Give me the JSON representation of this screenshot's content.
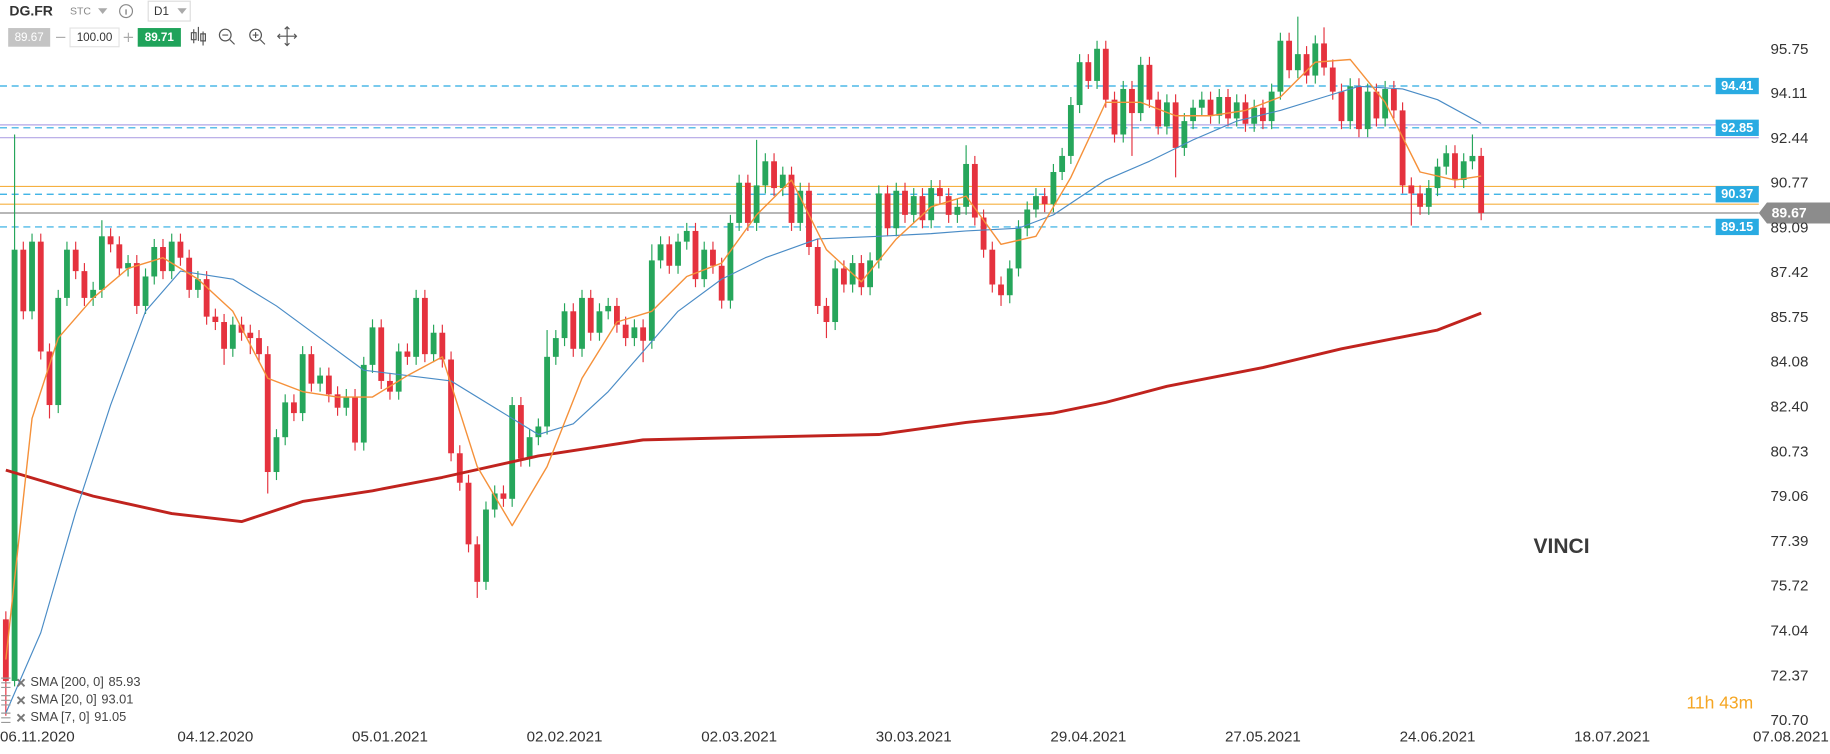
{
  "header": {
    "symbol": "DG.FR",
    "market": "STC",
    "timeframe": "D1",
    "bid": "89.67",
    "volume": "100.00",
    "ask": "89.71"
  },
  "annotation": "VINCI",
  "countdown": "11h 43m",
  "chart_data": {
    "type": "candlestick",
    "xlim": [
      -0.67,
      208.96
    ],
    "ylim": [
      70.52,
      97.62
    ],
    "xticks": [
      {
        "value": 4,
        "label": "06.11.2020"
      },
      {
        "value": 24,
        "label": "04.12.2020"
      },
      {
        "value": 44,
        "label": "05.01.2021"
      },
      {
        "value": 64,
        "label": "02.02.2021"
      },
      {
        "value": 84,
        "label": "02.03.2021"
      },
      {
        "value": 104,
        "label": "30.03.2021"
      },
      {
        "value": 124,
        "label": "29.04.2021"
      },
      {
        "value": 144,
        "label": "27.05.2021"
      },
      {
        "value": 164,
        "label": "24.06.2021"
      },
      {
        "value": 184,
        "label": "18.07.2021"
      },
      {
        "value": 204,
        "label": "07.08.2021"
      }
    ],
    "yticks": [
      95.75,
      94.11,
      92.44,
      90.77,
      89.09,
      87.42,
      85.75,
      84.08,
      {
        "value": 82.4,
        "label": "82.40"
      },
      80.73,
      79.06,
      77.39,
      75.72,
      74.04,
      72.37,
      {
        "value": 70.7,
        "label": "70.70"
      }
    ],
    "grid": false,
    "colors": {
      "up": "#26a65b",
      "down": "#e5323e"
    },
    "x": [
      0,
      1,
      2,
      3,
      4,
      5,
      6,
      7,
      8,
      9,
      10,
      11,
      12,
      13,
      14,
      15,
      16,
      17,
      18,
      19,
      20,
      21,
      22,
      23,
      24,
      25,
      26,
      27,
      28,
      29,
      30,
      31,
      32,
      33,
      34,
      35,
      36,
      37,
      38,
      39,
      40,
      41,
      42,
      43,
      44,
      45,
      46,
      47,
      48,
      49,
      50,
      51,
      52,
      53,
      54,
      55,
      56,
      57,
      58,
      59,
      60,
      61,
      62,
      63,
      64,
      65,
      66,
      67,
      68,
      69,
      70,
      71,
      72,
      73,
      74,
      75,
      76,
      77,
      78,
      79,
      80,
      81,
      82,
      83,
      84,
      85,
      86,
      87,
      88,
      89,
      90,
      91,
      92,
      93,
      94,
      95,
      96,
      97,
      98,
      99,
      100,
      101,
      102,
      103,
      104,
      105,
      106,
      107,
      108,
      109,
      110,
      111,
      112,
      113,
      114,
      115,
      116,
      117,
      118,
      119,
      120,
      121,
      122,
      123,
      124,
      125,
      126,
      127,
      128,
      129,
      130,
      131,
      132,
      133,
      134,
      135,
      136,
      137,
      138,
      139,
      140,
      141,
      142,
      143,
      144,
      145,
      146,
      147,
      148,
      149,
      150,
      151,
      152,
      153,
      154,
      155,
      156,
      157,
      158,
      159,
      160,
      161,
      162,
      163,
      164,
      165,
      166,
      167,
      168,
      169
    ],
    "open": [
      74.5,
      72.2,
      88.3,
      86.0,
      88.6,
      84.5,
      82.5,
      86.5,
      88.3,
      87.5,
      86.5,
      86.8,
      88.8,
      88.5,
      87.6,
      87.8,
      86.2,
      87.3,
      88.4,
      87.5,
      88.6,
      88.0,
      86.8,
      87.2,
      85.8,
      85.6,
      84.6,
      85.5,
      85.2,
      85.0,
      84.4,
      80.0,
      81.3,
      82.6,
      82.2,
      84.4,
      83.3,
      83.6,
      82.9,
      82.4,
      82.8,
      81.1,
      84.0,
      85.4,
      83.4,
      83.0,
      84.5,
      84.3,
      86.5,
      84.4,
      85.2,
      84.2,
      80.7,
      79.6,
      77.3,
      75.9,
      78.6,
      79.2,
      79.0,
      82.5,
      80.5,
      81.3,
      81.7,
      84.3,
      85.0,
      86.0,
      84.6,
      86.5,
      85.2,
      86.0,
      86.2,
      85.5,
      85.0,
      85.4,
      84.9,
      87.9,
      88.5,
      87.7,
      88.6,
      89.0,
      87.2,
      88.3,
      87.7,
      86.4,
      89.3,
      90.8,
      89.3,
      90.7,
      91.6,
      90.6,
      91.1,
      89.3,
      90.5,
      88.4,
      86.2,
      85.6,
      87.6,
      87.0,
      87.8,
      86.9,
      87.9,
      90.4,
      89.1,
      90.5,
      89.6,
      90.3,
      89.4,
      90.6,
      90.3,
      89.6,
      89.9,
      91.5,
      89.5,
      88.3,
      87.0,
      86.6,
      87.6,
      89.1,
      89.8,
      90.3,
      90.0,
      91.2,
      91.8,
      93.7,
      95.3,
      94.6,
      95.8,
      93.9,
      92.6,
      94.3,
      93.4,
      95.2,
      93.9,
      92.9,
      93.8,
      92.1,
      93.1,
      93.6,
      93.9,
      93.3,
      94.0,
      93.2,
      93.8,
      93.0,
      93.6,
      93.1,
      94.2,
      96.1,
      95.0,
      95.6,
      94.8,
      96.0,
      95.1,
      94.2,
      93.1,
      94.4,
      92.8,
      94.2,
      93.2,
      94.3,
      93.5,
      90.7,
      90.4,
      89.9,
      90.6,
      91.4,
      91.9,
      90.9,
      91.6,
      91.8
    ],
    "high": [
      74.8,
      92.6,
      88.6,
      88.9,
      88.9,
      84.8,
      86.8,
      88.6,
      88.6,
      87.8,
      87.1,
      89.4,
      89.1,
      88.8,
      88.1,
      88.1,
      87.6,
      88.7,
      88.7,
      88.9,
      88.9,
      88.3,
      87.5,
      87.5,
      86.1,
      85.9,
      85.8,
      85.8,
      85.5,
      85.3,
      84.7,
      81.6,
      82.9,
      82.9,
      84.7,
      84.7,
      83.9,
      83.9,
      83.2,
      83.1,
      83.1,
      84.3,
      85.7,
      85.7,
      83.7,
      84.8,
      84.8,
      86.8,
      86.8,
      85.5,
      85.5,
      84.5,
      81.0,
      79.9,
      77.6,
      78.9,
      79.5,
      79.5,
      82.8,
      82.8,
      81.6,
      82.0,
      85.3,
      85.3,
      86.3,
      86.3,
      86.8,
      86.8,
      86.3,
      86.5,
      86.5,
      85.8,
      85.7,
      85.7,
      88.5,
      88.8,
      88.8,
      88.9,
      89.3,
      89.3,
      88.6,
      88.6,
      88.0,
      89.6,
      91.1,
      91.1,
      92.4,
      91.9,
      91.9,
      91.4,
      91.4,
      90.8,
      90.8,
      88.7,
      86.5,
      87.9,
      87.9,
      88.1,
      88.1,
      88.2,
      90.7,
      90.7,
      90.8,
      90.8,
      90.6,
      90.6,
      90.9,
      90.9,
      90.6,
      90.2,
      92.2,
      91.8,
      89.8,
      88.6,
      87.3,
      87.9,
      89.4,
      90.1,
      90.6,
      90.6,
      91.5,
      92.1,
      94.0,
      95.6,
      95.6,
      96.1,
      96.1,
      94.2,
      94.6,
      94.6,
      95.5,
      95.5,
      94.2,
      94.1,
      94.1,
      93.4,
      93.9,
      94.2,
      94.2,
      94.3,
      94.3,
      94.1,
      94.1,
      93.9,
      93.9,
      94.5,
      96.4,
      96.4,
      97.0,
      95.9,
      96.3,
      96.6,
      95.4,
      94.5,
      94.7,
      94.7,
      94.5,
      94.5,
      94.6,
      94.6,
      93.8,
      91.0,
      90.7,
      90.9,
      91.7,
      92.2,
      92.2,
      91.9,
      92.6,
      92.1
    ],
    "low": [
      70.9,
      72.0,
      85.7,
      85.7,
      84.2,
      82.0,
      82.2,
      86.2,
      87.2,
      86.2,
      86.2,
      86.5,
      88.2,
      87.3,
      87.3,
      85.9,
      85.9,
      87.0,
      87.2,
      87.2,
      87.7,
      86.5,
      86.5,
      85.5,
      85.3,
      84.0,
      84.3,
      84.9,
      84.4,
      84.1,
      79.2,
      79.7,
      81.0,
      81.9,
      81.9,
      83.0,
      83.0,
      82.6,
      82.1,
      82.1,
      80.8,
      80.8,
      83.7,
      83.1,
      82.7,
      82.7,
      84.0,
      84.0,
      84.1,
      84.1,
      83.9,
      80.4,
      79.3,
      77.0,
      75.3,
      75.6,
      78.3,
      78.7,
      78.7,
      80.2,
      80.2,
      81.0,
      81.4,
      84.0,
      84.7,
      84.3,
      84.3,
      84.9,
      84.9,
      85.7,
      85.2,
      84.7,
      84.7,
      84.1,
      84.6,
      87.6,
      87.4,
      87.4,
      88.3,
      86.9,
      86.9,
      87.4,
      86.1,
      86.1,
      89.0,
      89.0,
      89.0,
      90.4,
      90.3,
      90.3,
      89.0,
      89.0,
      88.1,
      85.9,
      85.0,
      85.3,
      86.7,
      86.7,
      86.6,
      86.6,
      87.6,
      88.8,
      88.8,
      89.3,
      89.3,
      89.1,
      89.1,
      90.0,
      89.3,
      89.3,
      89.6,
      89.2,
      88.0,
      86.7,
      86.2,
      86.3,
      87.3,
      88.8,
      89.5,
      89.7,
      89.7,
      90.9,
      91.5,
      93.4,
      94.3,
      94.3,
      93.6,
      92.3,
      92.3,
      91.8,
      93.1,
      93.6,
      92.6,
      92.6,
      91.0,
      91.8,
      92.8,
      93.3,
      93.0,
      93.0,
      92.9,
      92.9,
      92.7,
      92.7,
      92.8,
      92.8,
      93.9,
      94.7,
      94.7,
      94.5,
      94.5,
      94.8,
      93.9,
      92.8,
      92.8,
      92.5,
      92.5,
      92.9,
      92.9,
      93.2,
      90.4,
      89.2,
      89.6,
      89.6,
      90.3,
      91.1,
      90.6,
      90.6,
      91.3,
      89.4
    ],
    "close": [
      72.2,
      88.3,
      86.0,
      88.6,
      84.5,
      82.5,
      86.5,
      88.3,
      87.5,
      86.5,
      86.8,
      88.8,
      88.5,
      87.6,
      87.8,
      86.2,
      87.3,
      88.4,
      87.5,
      88.6,
      88.0,
      86.8,
      87.2,
      85.8,
      85.6,
      84.6,
      85.5,
      85.2,
      85.0,
      84.4,
      80.0,
      81.3,
      82.6,
      82.2,
      84.4,
      83.3,
      83.6,
      82.9,
      82.4,
      82.8,
      81.1,
      84.0,
      85.4,
      83.4,
      83.0,
      84.5,
      84.3,
      86.5,
      84.4,
      85.2,
      84.2,
      80.7,
      79.6,
      77.3,
      75.9,
      78.6,
      79.2,
      79.0,
      82.5,
      80.5,
      81.3,
      81.7,
      84.3,
      85.0,
      86.0,
      84.6,
      86.5,
      85.2,
      86.0,
      86.2,
      85.5,
      85.0,
      85.4,
      84.9,
      87.9,
      88.5,
      87.7,
      88.6,
      89.0,
      87.2,
      88.3,
      87.7,
      86.4,
      89.3,
      90.8,
      89.3,
      90.7,
      91.6,
      90.6,
      91.1,
      89.3,
      90.5,
      88.4,
      86.2,
      85.6,
      87.6,
      87.0,
      87.8,
      86.9,
      87.9,
      90.4,
      89.1,
      90.5,
      89.6,
      90.3,
      89.4,
      90.6,
      90.3,
      89.6,
      89.9,
      91.5,
      89.5,
      88.3,
      87.0,
      86.6,
      87.6,
      89.1,
      89.8,
      90.3,
      90.0,
      91.2,
      91.8,
      93.7,
      95.3,
      94.6,
      95.8,
      93.9,
      92.6,
      94.3,
      93.4,
      95.2,
      93.9,
      92.9,
      93.8,
      92.1,
      93.1,
      93.6,
      93.9,
      93.3,
      94.0,
      93.2,
      93.8,
      93.0,
      93.6,
      93.1,
      94.2,
      96.1,
      95.0,
      95.6,
      94.8,
      96.0,
      95.1,
      94.2,
      93.1,
      94.4,
      92.8,
      94.2,
      93.2,
      94.3,
      93.5,
      90.7,
      90.4,
      89.9,
      90.6,
      91.4,
      91.9,
      90.9,
      91.6,
      91.8,
      89.67
    ],
    "series": [
      {
        "name": "SMA [200, 0]",
        "color": "#c0231e",
        "width": 2.5,
        "x": [
          0,
          10,
          19,
          27,
          34,
          42,
          50,
          61,
          73,
          86,
          100,
          110,
          120,
          126,
          133,
          144,
          153,
          164,
          169
        ],
        "values": [
          80.07,
          79.1,
          78.45,
          78.15,
          78.9,
          79.3,
          79.8,
          80.6,
          81.2,
          81.3,
          81.4,
          81.85,
          82.2,
          82.6,
          83.2,
          83.9,
          84.6,
          85.3,
          85.93
        ]
      },
      {
        "name": "SMA [20, 0]",
        "color": "#4a8cc6",
        "width": 1,
        "x": [
          0,
          4,
          8,
          12,
          16,
          20,
          26,
          31,
          36,
          41,
          46,
          51,
          56,
          61,
          65,
          69,
          73,
          77,
          82,
          87,
          93,
          100,
          106,
          110,
          116,
          120,
          126,
          131,
          136,
          141,
          146,
          151,
          155,
          160,
          164,
          169
        ],
        "values": [
          71.0,
          74.0,
          78.5,
          82.5,
          86.0,
          87.5,
          87.2,
          86.2,
          85.0,
          83.8,
          83.6,
          83.4,
          82.4,
          81.4,
          81.8,
          83.0,
          84.5,
          86.0,
          87.2,
          88.0,
          88.7,
          88.8,
          88.9,
          89.0,
          89.1,
          89.6,
          90.9,
          91.6,
          92.4,
          93.1,
          93.5,
          94.0,
          94.4,
          94.3,
          93.9,
          93.01
        ]
      },
      {
        "name": "SMA [7, 0]",
        "color": "#f5913a",
        "width": 1.2,
        "x": [
          0,
          3,
          6,
          10,
          14,
          18,
          22,
          26,
          30,
          34,
          38,
          42,
          46,
          50,
          54,
          58,
          62,
          66,
          70,
          74,
          78,
          82,
          86,
          90,
          94,
          98,
          102,
          106,
          110,
          114,
          118,
          122,
          126,
          130,
          134,
          138,
          142,
          146,
          150,
          154,
          158,
          162,
          166,
          169
        ],
        "values": [
          73.0,
          82.0,
          85.0,
          86.5,
          87.6,
          88.0,
          87.2,
          86.0,
          83.5,
          83.0,
          82.8,
          82.8,
          83.6,
          84.3,
          80.2,
          78.0,
          80.2,
          83.5,
          85.6,
          86.0,
          87.3,
          87.8,
          89.6,
          90.9,
          88.3,
          87.1,
          88.7,
          89.9,
          90.3,
          88.5,
          88.8,
          91.0,
          93.8,
          93.8,
          93.3,
          93.3,
          93.5,
          94.0,
          95.3,
          95.4,
          93.8,
          91.2,
          90.9,
          91.05
        ]
      }
    ],
    "legend": "bottom-left",
    "levels": [
      {
        "value": 92.96,
        "color": "#b3a6e6",
        "dashed": false,
        "tag": false
      },
      {
        "value": 92.48,
        "color": "#b3a6e6",
        "dashed": false,
        "tag": false
      },
      {
        "value": 90.66,
        "color": "#f5b041",
        "dashed": false,
        "tag": false
      },
      {
        "value": 90.0,
        "color": "#f5b041",
        "dashed": false,
        "tag": false
      },
      {
        "value": 94.41,
        "color": "#29abe2",
        "dashed": true,
        "tag": true
      },
      {
        "value": 92.85,
        "color": "#29abe2",
        "dashed": true,
        "tag": true
      },
      {
        "value": 90.37,
        "color": "#29abe2",
        "dashed": true,
        "tag": true
      },
      {
        "value": 89.15,
        "color": "#29abe2",
        "dashed": true,
        "tag": true
      },
      {
        "value": 89.67,
        "color": "#8c8c8c",
        "dashed": false,
        "tag": true,
        "last": true
      }
    ]
  }
}
